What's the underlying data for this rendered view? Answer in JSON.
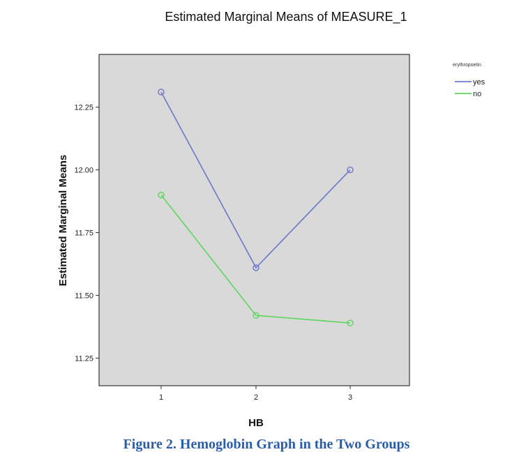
{
  "page": {
    "caption": "Figure 2. Hemoglobin Graph in the Two Groups"
  },
  "chart_data": {
    "type": "line",
    "title": "Estimated Marginal Means of MEASURE_1",
    "xlabel": "HB",
    "ylabel": "Estimated Marginal Means",
    "categories": [
      "1",
      "2",
      "3"
    ],
    "ylim": [
      11.14,
      12.46
    ],
    "yticks": [
      11.25,
      11.5,
      11.75,
      12.0,
      12.25
    ],
    "ytick_labels": [
      "11.25",
      "11.50",
      "11.75",
      "12.00",
      "12.25"
    ],
    "grid": false,
    "legend": {
      "title": "erythropoetin",
      "position": "top-right outside plot"
    },
    "series": [
      {
        "name": "yes",
        "color": "#6b78c8",
        "values": [
          12.31,
          11.61,
          12.0
        ]
      },
      {
        "name": "no",
        "color": "#5cd65c",
        "values": [
          11.9,
          11.42,
          11.39
        ]
      }
    ]
  }
}
